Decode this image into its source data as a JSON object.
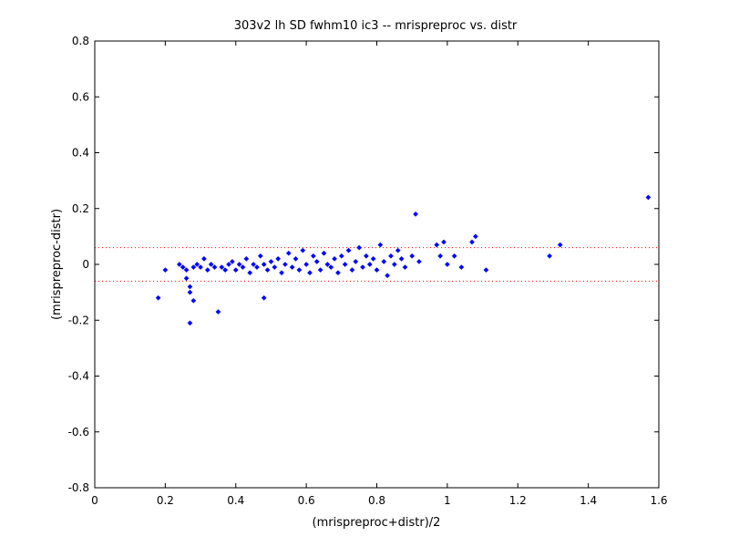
{
  "chart_data": {
    "type": "scatter",
    "title": "303v2 lh SD fwhm10 ic3 -- mrispreproc vs. distr",
    "xlabel": "(mrispreproc+distr)/2",
    "ylabel": "(mrispreproc-distr)",
    "xlim": [
      0,
      1.6
    ],
    "ylim": [
      -0.8,
      0.8
    ],
    "xticks": [
      0,
      0.2,
      0.4,
      0.6,
      0.8,
      1,
      1.2,
      1.4,
      1.6
    ],
    "xtick_labels": [
      "0",
      "0.2",
      "0.4",
      "0.6",
      "0.8",
      "1",
      "1.2",
      "1.4",
      "1.6"
    ],
    "yticks": [
      -0.8,
      -0.6,
      -0.4,
      -0.2,
      0,
      0.2,
      0.4,
      0.6,
      0.8
    ],
    "ytick_labels": [
      "-0.8",
      "-0.6",
      "-0.4",
      "-0.2",
      "0",
      "0.2",
      "0.4",
      "0.6",
      "0.8"
    ],
    "grid": false,
    "marker_color": "#0000ff",
    "reference_lines": {
      "y_values": [
        0.06,
        -0.06
      ],
      "color": "#ff0000",
      "style": "dotted"
    },
    "series": [
      {
        "points": [
          [
            0.18,
            -0.12
          ],
          [
            0.2,
            -0.02
          ],
          [
            0.24,
            0.0
          ],
          [
            0.25,
            -0.01
          ],
          [
            0.26,
            -0.02
          ],
          [
            0.26,
            -0.05
          ],
          [
            0.27,
            -0.08
          ],
          [
            0.27,
            -0.1
          ],
          [
            0.27,
            -0.21
          ],
          [
            0.28,
            -0.13
          ],
          [
            0.28,
            -0.01
          ],
          [
            0.29,
            0.0
          ],
          [
            0.3,
            -0.01
          ],
          [
            0.31,
            0.02
          ],
          [
            0.32,
            -0.02
          ],
          [
            0.33,
            0.0
          ],
          [
            0.34,
            -0.01
          ],
          [
            0.35,
            -0.17
          ],
          [
            0.36,
            -0.01
          ],
          [
            0.37,
            -0.02
          ],
          [
            0.38,
            0.0
          ],
          [
            0.39,
            0.01
          ],
          [
            0.4,
            -0.02
          ],
          [
            0.41,
            0.0
          ],
          [
            0.42,
            -0.01
          ],
          [
            0.43,
            0.02
          ],
          [
            0.44,
            -0.03
          ],
          [
            0.45,
            0.0
          ],
          [
            0.46,
            -0.01
          ],
          [
            0.47,
            0.03
          ],
          [
            0.48,
            -0.12
          ],
          [
            0.48,
            0.0
          ],
          [
            0.49,
            -0.02
          ],
          [
            0.5,
            0.01
          ],
          [
            0.51,
            -0.01
          ],
          [
            0.52,
            0.02
          ],
          [
            0.53,
            -0.03
          ],
          [
            0.54,
            0.0
          ],
          [
            0.55,
            0.04
          ],
          [
            0.56,
            -0.01
          ],
          [
            0.57,
            0.02
          ],
          [
            0.58,
            -0.02
          ],
          [
            0.59,
            0.05
          ],
          [
            0.6,
            0.0
          ],
          [
            0.61,
            -0.03
          ],
          [
            0.62,
            0.03
          ],
          [
            0.63,
            0.01
          ],
          [
            0.64,
            -0.02
          ],
          [
            0.65,
            0.04
          ],
          [
            0.66,
            0.0
          ],
          [
            0.67,
            -0.01
          ],
          [
            0.68,
            0.02
          ],
          [
            0.69,
            -0.03
          ],
          [
            0.7,
            0.03
          ],
          [
            0.71,
            0.0
          ],
          [
            0.72,
            0.05
          ],
          [
            0.73,
            -0.02
          ],
          [
            0.74,
            0.01
          ],
          [
            0.75,
            0.06
          ],
          [
            0.76,
            -0.01
          ],
          [
            0.77,
            0.03
          ],
          [
            0.78,
            0.0
          ],
          [
            0.79,
            0.02
          ],
          [
            0.8,
            -0.02
          ],
          [
            0.81,
            0.07
          ],
          [
            0.82,
            0.01
          ],
          [
            0.83,
            -0.04
          ],
          [
            0.84,
            0.03
          ],
          [
            0.85,
            0.0
          ],
          [
            0.86,
            0.05
          ],
          [
            0.87,
            0.02
          ],
          [
            0.88,
            -0.01
          ],
          [
            0.9,
            0.03
          ],
          [
            0.91,
            0.18
          ],
          [
            0.92,
            0.01
          ],
          [
            0.97,
            0.07
          ],
          [
            0.98,
            0.03
          ],
          [
            0.99,
            0.08
          ],
          [
            1.0,
            0.0
          ],
          [
            1.02,
            0.03
          ],
          [
            1.04,
            -0.01
          ],
          [
            1.07,
            0.08
          ],
          [
            1.08,
            0.1
          ],
          [
            1.11,
            -0.02
          ],
          [
            1.29,
            0.03
          ],
          [
            1.32,
            0.07
          ],
          [
            1.57,
            0.24
          ]
        ]
      }
    ]
  }
}
